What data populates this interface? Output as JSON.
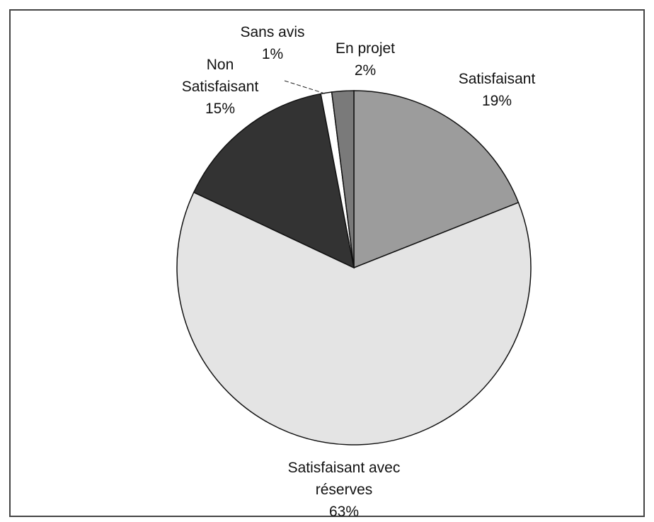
{
  "chart_data": {
    "type": "pie",
    "categories": [
      "Satisfaisant",
      "Satisfaisant avec réserves",
      "Non Satisfaisant",
      "Sans avis",
      "En projet"
    ],
    "values": [
      19,
      63,
      15,
      1,
      2
    ],
    "value_labels": [
      "19%",
      "63%",
      "15%",
      "1%",
      "2%"
    ],
    "colors": [
      "#9c9c9c",
      "#e4e4e4",
      "#333333",
      "#ffffff",
      "#7a7a7a"
    ]
  }
}
